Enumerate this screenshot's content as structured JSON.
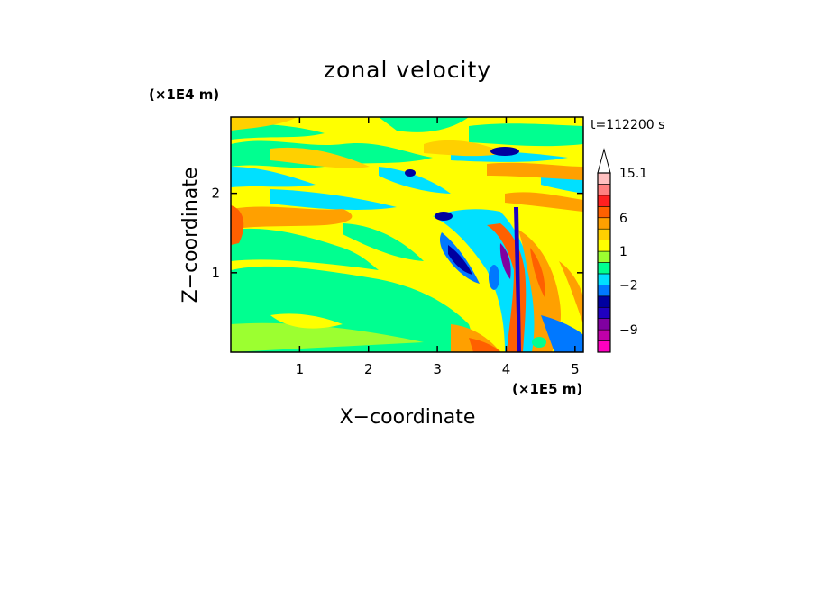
{
  "chart_data": {
    "type": "heatmap",
    "title": "zonal velocity",
    "xlabel": "X−coordinate",
    "ylabel": "Z−coordinate",
    "x_unit": "(×1E5 m)",
    "y_unit": "(×1E4 m)",
    "time_label": "t=112200  s",
    "xlim": [
      0,
      5.12
    ],
    "ylim": [
      0,
      2.96
    ],
    "x_ticks": [
      {
        "value": 1,
        "label": "1"
      },
      {
        "value": 2,
        "label": "2"
      },
      {
        "value": 3,
        "label": "3"
      },
      {
        "value": 4,
        "label": "4"
      },
      {
        "value": 5,
        "label": "5"
      }
    ],
    "y_ticks": [
      {
        "value": 1,
        "label": "1"
      },
      {
        "value": 2,
        "label": "2"
      }
    ],
    "colorbar": {
      "levels": [
        -13,
        -11,
        -9,
        -7,
        -5,
        -3,
        -2,
        -1,
        0,
        1,
        2,
        3,
        6,
        9,
        12,
        15.1
      ],
      "colors": [
        "#ff00c0",
        "#c000a8",
        "#8000a0",
        "#2000c0",
        "#0000a0",
        "#0078ff",
        "#00e0ff",
        "#00ff90",
        "#9cff30",
        "#ffff00",
        "#ffd000",
        "#ffa000",
        "#ff6000",
        "#ff2020",
        "#ff8080",
        "#ffc0c0"
      ],
      "tick_labels": [
        {
          "value": 15.1,
          "label": "15.1"
        },
        {
          "value": 6,
          "label": "6"
        },
        {
          "value": 1,
          "label": "1"
        },
        {
          "value": -2,
          "label": "−2"
        },
        {
          "value": -9,
          "label": "−9"
        }
      ]
    },
    "grid": false,
    "legend": "colorbar-right"
  }
}
